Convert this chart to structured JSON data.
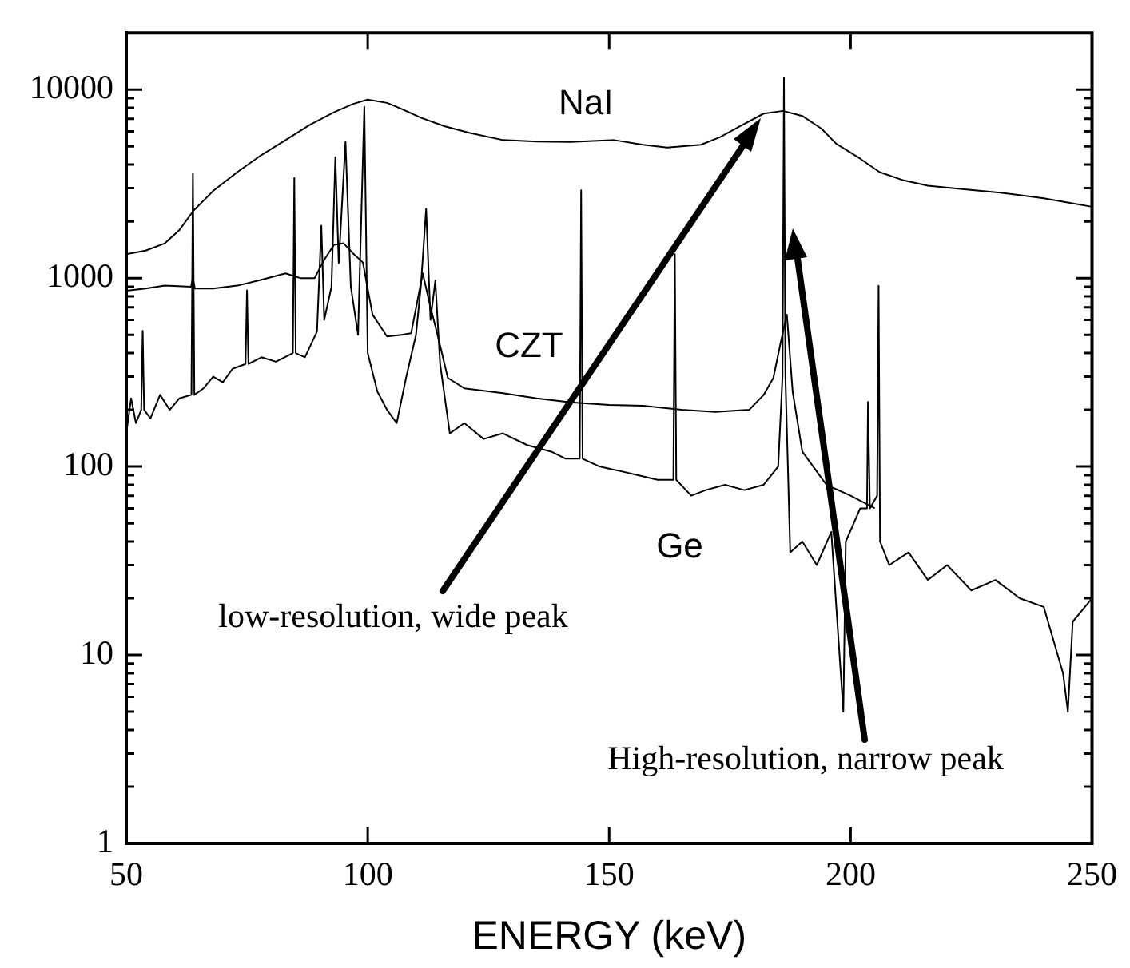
{
  "chart_data": {
    "type": "line",
    "xlabel": "ENERGY (keV)",
    "log": "y",
    "xlim": [
      50,
      250
    ],
    "xticks": [
      50,
      100,
      150,
      200,
      250
    ],
    "ylim": [
      1,
      20000
    ],
    "yticks": [
      1,
      {
        "value": 2,
        "label": null
      },
      {
        "value": 3,
        "label": null
      },
      {
        "value": 4,
        "label": null
      },
      {
        "value": 5,
        "label": null
      },
      {
        "value": 6,
        "label": null
      },
      {
        "value": 7,
        "label": null
      },
      {
        "value": 8,
        "label": null
      },
      {
        "value": 9,
        "label": null
      },
      10,
      {
        "value": 20,
        "label": null
      },
      {
        "value": 30,
        "label": null
      },
      {
        "value": 40,
        "label": null
      },
      {
        "value": 50,
        "label": null
      },
      {
        "value": 60,
        "label": null
      },
      {
        "value": 70,
        "label": null
      },
      {
        "value": 80,
        "label": null
      },
      {
        "value": 90,
        "label": null
      },
      100,
      {
        "value": 200,
        "label": null
      },
      {
        "value": 300,
        "label": null
      },
      {
        "value": 400,
        "label": null
      },
      {
        "value": 500,
        "label": null
      },
      {
        "value": 600,
        "label": null
      },
      {
        "value": 700,
        "label": null
      },
      {
        "value": 800,
        "label": null
      },
      {
        "value": 900,
        "label": null
      },
      1000,
      {
        "value": 2000,
        "label": null
      },
      {
        "value": 3000,
        "label": null
      },
      {
        "value": 4000,
        "label": null
      },
      {
        "value": 5000,
        "label": null
      },
      {
        "value": 6000,
        "label": null
      },
      {
        "value": 7000,
        "label": null
      },
      {
        "value": 8000,
        "label": null
      },
      {
        "value": 9000,
        "label": null
      },
      10000
    ],
    "grid": false,
    "series": [
      {
        "name": "NaI",
        "color": "#000000",
        "x": [
          50,
          54,
          58,
          61,
          64,
          68,
          73,
          78,
          83,
          88,
          93,
          97,
          100,
          104,
          107,
          111,
          116,
          121,
          128,
          135,
          142,
          151,
          157,
          162,
          169,
          173,
          177,
          182,
          186,
          190,
          194,
          197,
          202,
          206,
          211,
          216,
          224,
          231,
          240,
          250
        ],
        "values": [
          1340,
          1400,
          1530,
          1800,
          2290,
          2900,
          3650,
          4500,
          5400,
          6500,
          7580,
          8400,
          8850,
          8500,
          7900,
          7100,
          6380,
          5900,
          5400,
          5300,
          5270,
          5400,
          5100,
          4930,
          5100,
          5600,
          6380,
          7460,
          7710,
          7250,
          6200,
          5170,
          4300,
          3650,
          3300,
          3090,
          2950,
          2840,
          2650,
          2390
        ]
      },
      {
        "name": "CZT",
        "color": "#000000",
        "x": [
          50,
          54,
          58,
          63.4,
          63.8,
          64.2,
          68,
          73,
          78,
          83,
          86,
          89,
          91,
          93,
          95,
          97,
          99,
          101,
          104,
          107,
          109,
          111.4,
          113,
          114.3,
          116.6,
          120,
          128,
          135,
          142,
          150,
          157,
          165,
          172,
          179,
          182,
          184,
          185.5,
          186.8,
          188,
          190,
          195,
          200,
          205
        ],
        "values": [
          857,
          880,
          912,
          900,
          1000,
          880,
          880,
          912,
          980,
          1060,
          1000,
          1000,
          1250,
          1500,
          1530,
          1350,
          1210,
          640,
          490,
          500,
          510,
          1060,
          700,
          520,
          295,
          260,
          245,
          230,
          219,
          212,
          210,
          200,
          195,
          200,
          240,
          295,
          452,
          640,
          250,
          120,
          80,
          70,
          60
        ]
      },
      {
        "name": "Ge",
        "color": "#000000",
        "x": [
          50,
          51,
          52,
          53.1,
          53.4,
          53.7,
          55,
          57,
          59,
          61,
          63.5,
          63.8,
          64.1,
          66,
          68,
          70,
          72,
          74.7,
          75,
          75.3,
          78,
          81,
          84.5,
          84.8,
          85.1,
          87,
          89.5,
          90.4,
          91,
          92.5,
          93.3,
          94,
          95.4,
          96.5,
          98,
          99.3,
          100,
          102,
          104,
          106,
          108,
          110,
          111,
          112.1,
          113,
          114,
          115,
          117,
          120,
          124,
          128,
          133,
          138,
          141,
          143.9,
          144.2,
          144.5,
          148,
          152,
          156,
          160,
          163.3,
          163.6,
          163.9,
          167,
          170,
          174,
          178,
          182,
          185,
          185.9,
          186.2,
          186.5,
          187.5,
          190,
          193,
          196,
          198.5,
          199,
          202,
          203.4,
          203.6,
          204,
          205.5,
          205.8,
          206.1,
          208,
          212,
          216,
          220,
          225,
          230,
          235,
          240,
          244,
          245,
          246,
          250
        ],
        "values": [
          150,
          230,
          170,
          200,
          525,
          200,
          180,
          240,
          200,
          230,
          240,
          3600,
          240,
          260,
          300,
          280,
          330,
          350,
          860,
          350,
          380,
          360,
          400,
          3400,
          400,
          380,
          520,
          1900,
          600,
          900,
          4380,
          1200,
          5300,
          900,
          500,
          8100,
          400,
          250,
          200,
          170,
          300,
          500,
          900,
          2330,
          600,
          970,
          350,
          150,
          170,
          140,
          150,
          130,
          120,
          110,
          110,
          2920,
          110,
          100,
          95,
          90,
          85,
          85,
          1340,
          85,
          70,
          75,
          80,
          75,
          80,
          100,
          300,
          11600,
          300,
          35,
          40,
          30,
          45,
          5,
          40,
          60,
          60,
          220,
          60,
          70,
          910,
          40,
          30,
          35,
          25,
          30,
          22,
          25,
          20,
          18,
          8,
          5,
          15,
          20
        ]
      }
    ],
    "annotations": [
      "low-resolution, wide peak",
      "High-resolution, narrow peak"
    ]
  }
}
